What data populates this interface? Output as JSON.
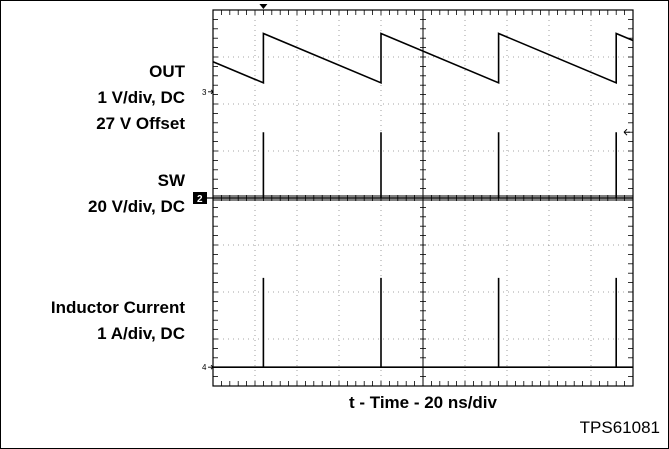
{
  "chart_data": {
    "type": "line",
    "title": "",
    "xlabel": "t - Time - 20 ns/div",
    "figure_id": "TPS61081",
    "time_per_div_ns": 20,
    "x_divisions": 10,
    "y_divisions": 8,
    "switching_period_div": 2.8,
    "first_switch_div": 1.2,
    "channels": [
      {
        "marker": "3",
        "lines": [
          "OUT",
          "1 V/div, DC",
          "27 V Offset"
        ],
        "waveform": "sawtooth",
        "reference_div": 2.26,
        "high_div": 3.5,
        "low_div": 2.45
      },
      {
        "marker": "2",
        "lines": [
          "SW",
          "20 V/div, DC"
        ],
        "waveform": "spikes",
        "reference_div": 0,
        "spike_div": 1.4
      },
      {
        "marker": "4",
        "lines": [
          "Inductor Current",
          "1 A/div, DC"
        ],
        "waveform": "spikes",
        "reference_div": -3.6,
        "spike_div": 1.9
      }
    ]
  }
}
